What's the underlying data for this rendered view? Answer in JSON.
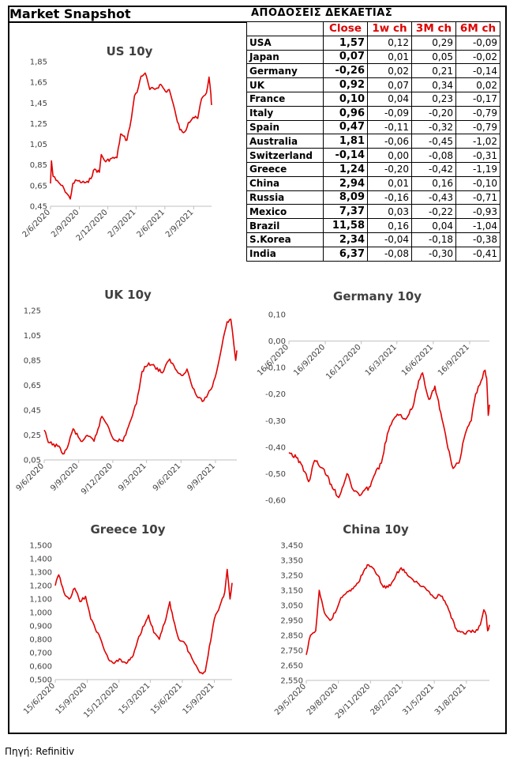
{
  "header": {
    "title": "Market Snapshot",
    "table_title": "ΑΠΟΔΟΣΕΙΣ ΔΕΚΑΕΤΙΑΣ"
  },
  "table": {
    "columns": [
      "",
      "Close",
      "1w ch",
      "3M ch",
      "6M ch"
    ],
    "rows": [
      [
        "USA",
        "1,57",
        "0,12",
        "0,29",
        "-0,09"
      ],
      [
        "Japan",
        "0,07",
        "0,01",
        "0,05",
        "-0,02"
      ],
      [
        "Germany",
        "-0,26",
        "0,02",
        "0,21",
        "-0,14"
      ],
      [
        "UK",
        "0,92",
        "0,07",
        "0,34",
        "0,02"
      ],
      [
        "France",
        "0,10",
        "0,04",
        "0,23",
        "-0,17"
      ],
      [
        "Italy",
        "0,96",
        "-0,09",
        "-0,20",
        "-0,79"
      ],
      [
        "Spain",
        "0,47",
        "-0,11",
        "-0,32",
        "-0,79"
      ],
      [
        "Australia",
        "1,81",
        "-0,06",
        "-0,45",
        "-1,02"
      ],
      [
        "Switzerland",
        "-0,14",
        "0,00",
        "-0,08",
        "-0,31"
      ],
      [
        "Greece",
        "1,24",
        "-0,20",
        "-0,42",
        "-1,19"
      ],
      [
        "China",
        "2,94",
        "0,01",
        "0,16",
        "-0,10"
      ],
      [
        "Russia",
        "8,09",
        "-0,16",
        "-0,43",
        "-0,71"
      ],
      [
        "Mexico",
        "7,37",
        "0,03",
        "-0,22",
        "-0,93"
      ],
      [
        "Brazil",
        "11,58",
        "0,16",
        "0,04",
        "-1,04"
      ],
      [
        "S.Korea",
        "2,34",
        "-0,04",
        "-0,18",
        "-0,38"
      ],
      [
        "India",
        "6,37",
        "-0,08",
        "-0,30",
        "-0,41"
      ]
    ]
  },
  "source": "Πηγή: Refinitiv",
  "chart_data": [
    {
      "id": "us",
      "type": "line",
      "title": "US 10y",
      "color": "#e00000",
      "ylim": [
        0.45,
        1.85
      ],
      "yticks": [
        "0,45",
        "0,65",
        "0,85",
        "1,05",
        "1,25",
        "1,45",
        "1,65",
        "1,85"
      ],
      "xticks": [
        "2/6/2020",
        "2/9/2020",
        "2/12/2020",
        "2/3/2021",
        "2/6/2021",
        "2/9/2021"
      ],
      "x_range": [
        "2020-06-02",
        "2021-10-29"
      ],
      "series": [
        {
          "points": [
            [
              "2020-06-02",
              0.67
            ],
            [
              "2020-06-05",
              0.89
            ],
            [
              "2020-06-10",
              0.74
            ],
            [
              "2020-06-20",
              0.7
            ],
            [
              "2020-07-01",
              0.67
            ],
            [
              "2020-07-15",
              0.62
            ],
            [
              "2020-08-04",
              0.52
            ],
            [
              "2020-08-12",
              0.67
            ],
            [
              "2020-08-25",
              0.7
            ],
            [
              "2020-09-10",
              0.68
            ],
            [
              "2020-10-01",
              0.68
            ],
            [
              "2020-10-21",
              0.81
            ],
            [
              "2020-11-05",
              0.78
            ],
            [
              "2020-11-11",
              0.95
            ],
            [
              "2020-11-25",
              0.88
            ],
            [
              "2020-12-10",
              0.91
            ],
            [
              "2020-12-31",
              0.92
            ],
            [
              "2021-01-12",
              1.15
            ],
            [
              "2021-02-01",
              1.09
            ],
            [
              "2021-02-15",
              1.3
            ],
            [
              "2021-02-25",
              1.52
            ],
            [
              "2021-03-05",
              1.55
            ],
            [
              "2021-03-18",
              1.71
            ],
            [
              "2021-03-31",
              1.74
            ],
            [
              "2021-04-15",
              1.58
            ],
            [
              "2021-05-05",
              1.59
            ],
            [
              "2021-05-20",
              1.63
            ],
            [
              "2021-06-04",
              1.56
            ],
            [
              "2021-06-16",
              1.58
            ],
            [
              "2021-06-25",
              1.48
            ],
            [
              "2021-07-08",
              1.32
            ],
            [
              "2021-07-20",
              1.19
            ],
            [
              "2021-08-04",
              1.17
            ],
            [
              "2021-08-16",
              1.26
            ],
            [
              "2021-08-31",
              1.31
            ],
            [
              "2021-09-15",
              1.3
            ],
            [
              "2021-09-27",
              1.49
            ],
            [
              "2021-10-05",
              1.52
            ],
            [
              "2021-10-13",
              1.55
            ],
            [
              "2021-10-21",
              1.7
            ],
            [
              "2021-10-27",
              1.53
            ],
            [
              "2021-10-29",
              1.43
            ]
          ]
        }
      ]
    },
    {
      "id": "uk",
      "type": "line",
      "title": "UK 10y",
      "color": "#e00000",
      "ylim": [
        0.05,
        1.25
      ],
      "yticks": [
        "0,05",
        "0,25",
        "0,45",
        "0,65",
        "0,85",
        "1,05",
        "1,25"
      ],
      "xticks": [
        "9/6/2020",
        "9/9/2020",
        "9/12/2020",
        "9/3/2021",
        "9/6/2021",
        "9/9/2021"
      ],
      "x_range": [
        "2020-06-09",
        "2021-11-05"
      ],
      "series": [
        {
          "points": [
            [
              "2020-06-09",
              0.29
            ],
            [
              "2020-06-20",
              0.19
            ],
            [
              "2020-07-15",
              0.16
            ],
            [
              "2020-08-01",
              0.1
            ],
            [
              "2020-08-10",
              0.15
            ],
            [
              "2020-08-25",
              0.3
            ],
            [
              "2020-09-15",
              0.2
            ],
            [
              "2020-10-05",
              0.24
            ],
            [
              "2020-10-20",
              0.2
            ],
            [
              "2020-11-10",
              0.4
            ],
            [
              "2020-11-25",
              0.33
            ],
            [
              "2020-12-10",
              0.22
            ],
            [
              "2021-01-05",
              0.2
            ],
            [
              "2021-01-20",
              0.32
            ],
            [
              "2021-02-10",
              0.5
            ],
            [
              "2021-02-25",
              0.76
            ],
            [
              "2021-03-15",
              0.83
            ],
            [
              "2021-03-31",
              0.8
            ],
            [
              "2021-04-20",
              0.75
            ],
            [
              "2021-05-10",
              0.86
            ],
            [
              "2021-05-25",
              0.78
            ],
            [
              "2021-06-10",
              0.73
            ],
            [
              "2021-06-25",
              0.78
            ],
            [
              "2021-07-10",
              0.63
            ],
            [
              "2021-07-25",
              0.55
            ],
            [
              "2021-08-05",
              0.52
            ],
            [
              "2021-08-20",
              0.58
            ],
            [
              "2021-09-01",
              0.64
            ],
            [
              "2021-09-15",
              0.8
            ],
            [
              "2021-09-30",
              1.03
            ],
            [
              "2021-10-10",
              1.16
            ],
            [
              "2021-10-20",
              1.18
            ],
            [
              "2021-10-28",
              0.98
            ],
            [
              "2021-11-02",
              0.85
            ],
            [
              "2021-11-05",
              0.93
            ]
          ]
        }
      ]
    },
    {
      "id": "germany",
      "type": "line",
      "title": "Germany 10y",
      "color": "#e00000",
      "ylim": [
        -0.6,
        0.1
      ],
      "yticks": [
        "-0,60",
        "-0,50",
        "-0,40",
        "-0,30",
        "-0,20",
        "-0,10",
        "0,00",
        "0,10"
      ],
      "xticks": [
        "16/6/2020",
        "16/9/2020",
        "16/12/2020",
        "16/3/2021",
        "16/6/2021",
        "16/9/2021"
      ],
      "x_range": [
        "2020-06-16",
        "2021-11-05"
      ],
      "series": [
        {
          "points": [
            [
              "2020-06-16",
              -0.42
            ],
            [
              "2020-07-05",
              -0.44
            ],
            [
              "2020-07-20",
              -0.47
            ],
            [
              "2020-08-05",
              -0.53
            ],
            [
              "2020-08-20",
              -0.45
            ],
            [
              "2020-09-10",
              -0.48
            ],
            [
              "2020-10-01",
              -0.54
            ],
            [
              "2020-10-20",
              -0.59
            ],
            [
              "2020-11-10",
              -0.5
            ],
            [
              "2020-11-25",
              -0.56
            ],
            [
              "2020-12-15",
              -0.58
            ],
            [
              "2021-01-05",
              -0.55
            ],
            [
              "2021-01-20",
              -0.5
            ],
            [
              "2021-02-05",
              -0.46
            ],
            [
              "2021-02-20",
              -0.35
            ],
            [
              "2021-03-05",
              -0.3
            ],
            [
              "2021-03-20",
              -0.28
            ],
            [
              "2021-04-10",
              -0.29
            ],
            [
              "2021-04-25",
              -0.25
            ],
            [
              "2021-05-10",
              -0.15
            ],
            [
              "2021-05-20",
              -0.12
            ],
            [
              "2021-06-05",
              -0.22
            ],
            [
              "2021-06-20",
              -0.17
            ],
            [
              "2021-07-05",
              -0.27
            ],
            [
              "2021-07-20",
              -0.38
            ],
            [
              "2021-08-05",
              -0.48
            ],
            [
              "2021-08-20",
              -0.46
            ],
            [
              "2021-09-05",
              -0.35
            ],
            [
              "2021-09-20",
              -0.3
            ],
            [
              "2021-10-01",
              -0.2
            ],
            [
              "2021-10-15",
              -0.15
            ],
            [
              "2021-10-25",
              -0.11
            ],
            [
              "2021-10-29",
              -0.14
            ],
            [
              "2021-11-02",
              -0.28
            ],
            [
              "2021-11-05",
              -0.24
            ]
          ]
        }
      ]
    },
    {
      "id": "greece",
      "type": "line",
      "title": "Greece 10y",
      "color": "#e00000",
      "ylim": [
        0.5,
        1.5
      ],
      "yticks": [
        "0,500",
        "0,600",
        "0,700",
        "0,800",
        "0,900",
        "1,000",
        "1,100",
        "1,200",
        "1,300",
        "1,400",
        "1,500"
      ],
      "xticks": [
        "15/6/2020",
        "15/9/2020",
        "15/12/2020",
        "15/3/2021",
        "15/6/2021",
        "15/9/2021"
      ],
      "x_range": [
        "2020-06-15",
        "2021-11-05"
      ],
      "series": [
        {
          "points": [
            [
              "2020-06-15",
              1.2
            ],
            [
              "2020-06-25",
              1.28
            ],
            [
              "2020-07-10",
              1.15
            ],
            [
              "2020-07-25",
              1.1
            ],
            [
              "2020-08-10",
              1.18
            ],
            [
              "2020-08-25",
              1.08
            ],
            [
              "2020-09-10",
              1.12
            ],
            [
              "2020-09-25",
              0.95
            ],
            [
              "2020-10-15",
              0.85
            ],
            [
              "2020-10-30",
              0.75
            ],
            [
              "2020-11-15",
              0.65
            ],
            [
              "2020-12-01",
              0.62
            ],
            [
              "2020-12-20",
              0.65
            ],
            [
              "2021-01-05",
              0.62
            ],
            [
              "2021-01-25",
              0.68
            ],
            [
              "2021-02-10",
              0.82
            ],
            [
              "2021-02-25",
              0.9
            ],
            [
              "2021-03-10",
              0.98
            ],
            [
              "2021-03-25",
              0.85
            ],
            [
              "2021-04-10",
              0.8
            ],
            [
              "2021-04-25",
              0.92
            ],
            [
              "2021-05-10",
              1.08
            ],
            [
              "2021-05-20",
              0.95
            ],
            [
              "2021-06-05",
              0.8
            ],
            [
              "2021-06-20",
              0.78
            ],
            [
              "2021-07-05",
              0.7
            ],
            [
              "2021-07-20",
              0.62
            ],
            [
              "2021-08-05",
              0.55
            ],
            [
              "2021-08-20",
              0.56
            ],
            [
              "2021-09-01",
              0.75
            ],
            [
              "2021-09-15",
              0.95
            ],
            [
              "2021-10-01",
              1.05
            ],
            [
              "2021-10-15",
              1.15
            ],
            [
              "2021-10-22",
              1.32
            ],
            [
              "2021-10-30",
              1.1
            ],
            [
              "2021-11-05",
              1.22
            ]
          ]
        }
      ]
    },
    {
      "id": "china",
      "type": "line",
      "title": "China 10y",
      "color": "#e00000",
      "ylim": [
        2.55,
        3.45
      ],
      "yticks": [
        "2,550",
        "2,650",
        "2,750",
        "2,850",
        "2,950",
        "3,050",
        "3,150",
        "3,250",
        "3,350",
        "3,450"
      ],
      "xticks": [
        "29/5/2020",
        "29/8/2020",
        "29/11/2020",
        "28/2/2021",
        "31/5/2021",
        "31/8/2021"
      ],
      "x_range": [
        "2020-05-29",
        "2021-11-05"
      ],
      "series": [
        {
          "points": [
            [
              "2020-05-29",
              2.72
            ],
            [
              "2020-06-10",
              2.85
            ],
            [
              "2020-06-25",
              2.88
            ],
            [
              "2020-07-05",
              3.15
            ],
            [
              "2020-07-20",
              3.0
            ],
            [
              "2020-08-05",
              2.95
            ],
            [
              "2020-08-20",
              3.0
            ],
            [
              "2020-09-05",
              3.1
            ],
            [
              "2020-09-20",
              3.13
            ],
            [
              "2020-10-10",
              3.16
            ],
            [
              "2020-10-25",
              3.2
            ],
            [
              "2020-11-10",
              3.28
            ],
            [
              "2020-11-20",
              3.32
            ],
            [
              "2020-12-05",
              3.3
            ],
            [
              "2020-12-20",
              3.25
            ],
            [
              "2021-01-05",
              3.17
            ],
            [
              "2021-01-25",
              3.18
            ],
            [
              "2021-02-10",
              3.25
            ],
            [
              "2021-02-25",
              3.3
            ],
            [
              "2021-03-15",
              3.25
            ],
            [
              "2021-03-31",
              3.22
            ],
            [
              "2021-04-20",
              3.18
            ],
            [
              "2021-05-10",
              3.15
            ],
            [
              "2021-05-31",
              3.1
            ],
            [
              "2021-06-15",
              3.12
            ],
            [
              "2021-06-30",
              3.08
            ],
            [
              "2021-07-15",
              3.0
            ],
            [
              "2021-07-30",
              2.9
            ],
            [
              "2021-08-10",
              2.88
            ],
            [
              "2021-08-25",
              2.86
            ],
            [
              "2021-09-10",
              2.88
            ],
            [
              "2021-09-25",
              2.87
            ],
            [
              "2021-10-10",
              2.92
            ],
            [
              "2021-10-20",
              3.02
            ],
            [
              "2021-10-27",
              2.98
            ],
            [
              "2021-10-31",
              2.88
            ],
            [
              "2021-11-05",
              2.92
            ]
          ]
        }
      ]
    }
  ]
}
